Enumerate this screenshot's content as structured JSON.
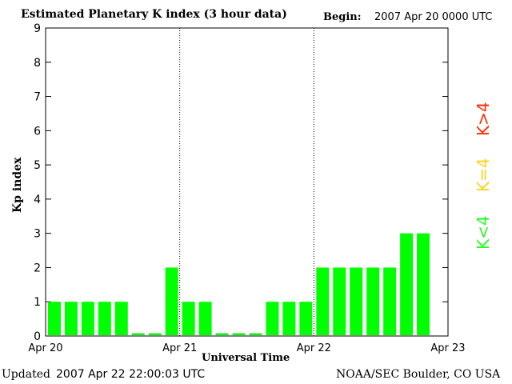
{
  "header": {
    "title": "Estimated Planetary K index (3 hour data)",
    "begin_label": "Begin:",
    "begin_value": "2007 Apr 20 0000 UTC"
  },
  "footer": {
    "updated_label": "Updated",
    "updated_value": "2007 Apr 22 22:00:03 UTC",
    "source": "NOAA/SEC Boulder, CO USA"
  },
  "legend": {
    "high": "K>4",
    "mid": "K=4",
    "low": "K<4",
    "high_color": "#ff2a00",
    "mid_color": "#ffd21a",
    "low_color": "#22ff22"
  },
  "chart_data": {
    "type": "bar",
    "title": "Estimated Planetary K index (3 hour data)",
    "xlabel": "Universal Time",
    "ylabel": "Kp index",
    "ylim": [
      0,
      9
    ],
    "yticks": [
      "0",
      "1",
      "2",
      "3",
      "4",
      "5",
      "6",
      "7",
      "8",
      "9"
    ],
    "xticks": [
      "Apr 20",
      "Apr 21",
      "Apr 22",
      "Apr 23"
    ],
    "grid": "dotted day separators",
    "bar_color": "#00ff00",
    "categories": [
      "Apr 20 00",
      "Apr 20 03",
      "Apr 20 06",
      "Apr 20 09",
      "Apr 20 12",
      "Apr 20 15",
      "Apr 20 18",
      "Apr 20 21",
      "Apr 21 00",
      "Apr 21 03",
      "Apr 21 06",
      "Apr 21 09",
      "Apr 21 12",
      "Apr 21 15",
      "Apr 21 18",
      "Apr 21 21",
      "Apr 22 00",
      "Apr 22 03",
      "Apr 22 06",
      "Apr 22 09",
      "Apr 22 12",
      "Apr 22 15",
      "Apr 22 18"
    ],
    "values": [
      1,
      1,
      1,
      1,
      1,
      0,
      0,
      2,
      1,
      1,
      0,
      0,
      0,
      1,
      1,
      1,
      2,
      2,
      2,
      2,
      2,
      3,
      3
    ]
  }
}
